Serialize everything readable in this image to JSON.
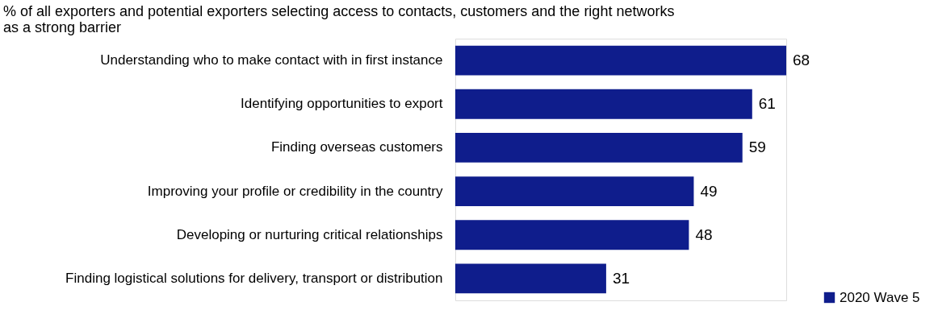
{
  "chart_data": {
    "type": "bar",
    "orientation": "horizontal",
    "title": [
      "% of all exporters and potential exporters selecting access to contacts, customers and the right networks",
      "as a strong barrier"
    ],
    "categories": [
      "Understanding who to make contact with in first instance",
      "Identifying opportunities to export",
      "Finding overseas customers",
      "Improving your profile or credibility in the country",
      "Developing or nurturing critical relationships",
      "Finding logistical solutions for delivery, transport or distribution"
    ],
    "series": [
      {
        "name": "2020 Wave 5",
        "color": "#0f1d8c",
        "values": [
          68,
          61,
          59,
          49,
          48,
          31
        ]
      }
    ],
    "data_labels": true,
    "legend": "bottom right"
  }
}
